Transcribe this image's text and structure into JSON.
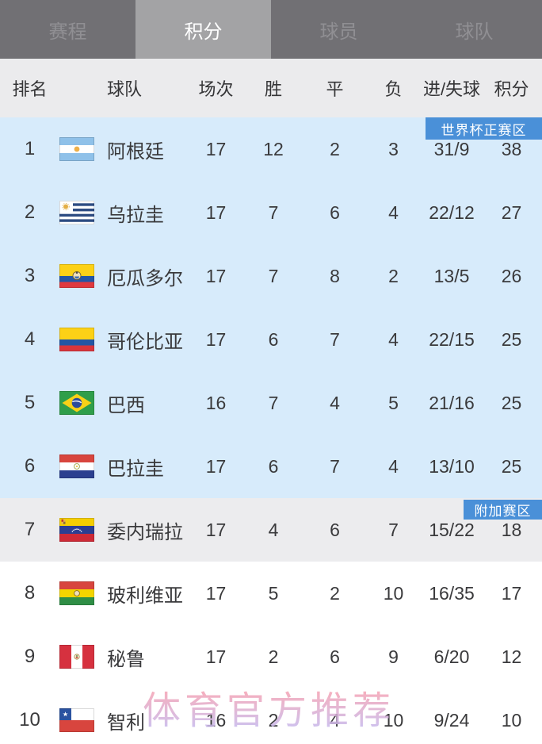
{
  "tabs": [
    {
      "label": "赛程",
      "active": false
    },
    {
      "label": "积分",
      "active": true
    },
    {
      "label": "球员",
      "active": false
    },
    {
      "label": "球队",
      "active": false
    }
  ],
  "table": {
    "headers": [
      "排名",
      "球队",
      "场次",
      "胜",
      "平",
      "负",
      "进/失球",
      "积分"
    ],
    "zone_badges": {
      "world_cup": "世界杯正赛区",
      "playoff": "附加赛区"
    },
    "rows": [
      {
        "rank": "1",
        "team": "阿根廷",
        "flag": "argentina",
        "played": "17",
        "win": "12",
        "draw": "2",
        "loss": "3",
        "goals": "31/9",
        "points": "38",
        "zone": "blue"
      },
      {
        "rank": "2",
        "team": "乌拉圭",
        "flag": "uruguay",
        "played": "17",
        "win": "7",
        "draw": "6",
        "loss": "4",
        "goals": "22/12",
        "points": "27",
        "zone": "blue"
      },
      {
        "rank": "3",
        "team": "厄瓜多尔",
        "flag": "ecuador",
        "played": "17",
        "win": "7",
        "draw": "8",
        "loss": "2",
        "goals": "13/5",
        "points": "26",
        "zone": "blue"
      },
      {
        "rank": "4",
        "team": "哥伦比亚",
        "flag": "colombia",
        "played": "17",
        "win": "6",
        "draw": "7",
        "loss": "4",
        "goals": "22/15",
        "points": "25",
        "zone": "blue"
      },
      {
        "rank": "5",
        "team": "巴西",
        "flag": "brazil",
        "played": "16",
        "win": "7",
        "draw": "4",
        "loss": "5",
        "goals": "21/16",
        "points": "25",
        "zone": "blue"
      },
      {
        "rank": "6",
        "team": "巴拉圭",
        "flag": "paraguay",
        "played": "17",
        "win": "6",
        "draw": "7",
        "loss": "4",
        "goals": "13/10",
        "points": "25",
        "zone": "blue"
      },
      {
        "rank": "7",
        "team": "委内瑞拉",
        "flag": "venezuela",
        "played": "17",
        "win": "4",
        "draw": "6",
        "loss": "7",
        "goals": "15/22",
        "points": "18",
        "zone": "gray"
      },
      {
        "rank": "8",
        "team": "玻利维亚",
        "flag": "bolivia",
        "played": "17",
        "win": "5",
        "draw": "2",
        "loss": "10",
        "goals": "16/35",
        "points": "17",
        "zone": "white"
      },
      {
        "rank": "9",
        "team": "秘鲁",
        "flag": "peru",
        "played": "17",
        "win": "2",
        "draw": "6",
        "loss": "9",
        "goals": "6/20",
        "points": "12",
        "zone": "white"
      },
      {
        "rank": "10",
        "team": "智利",
        "flag": "chile",
        "played": "16",
        "win": "2",
        "draw": "4",
        "loss": "10",
        "goals": "9/24",
        "points": "10",
        "zone": "white"
      }
    ]
  },
  "watermark": "体育官方推荐",
  "colors": {
    "zone_blue_bg": "#d7ebfb",
    "zone_gray_bg": "#ececee",
    "badge_blue": "#4a90d8",
    "tabbar_bg": "#717074",
    "tab_active_bg": "#a3a3a5"
  }
}
